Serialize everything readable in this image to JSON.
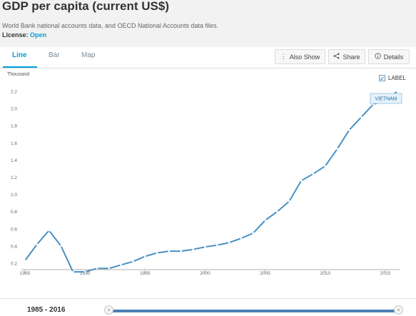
{
  "header": {
    "title": "GDP per capita (current US$)",
    "subtitle": "World Bank national accounts data, and OECD National Accounts data files.",
    "license_label": "License:",
    "license_value": "Open"
  },
  "tabs": [
    {
      "label": "Line",
      "active": true
    },
    {
      "label": "Bar",
      "active": false
    },
    {
      "label": "Map",
      "active": false
    }
  ],
  "toolbar": {
    "also_show": "Also Show",
    "share": "Share",
    "details": "Details"
  },
  "label_toggle": {
    "text": "LABEL",
    "checked": true
  },
  "icons": {
    "also_show": "vertical-dots-icon",
    "share": "share-icon",
    "details": "info-icon",
    "checkbox": "checkmark-icon"
  },
  "colors": {
    "accent": "#009fda",
    "line": "#4a90c2",
    "slider": "#4a7fb5"
  },
  "chart_data": {
    "type": "line",
    "unit_label": "Thousand",
    "x": [
      1985,
      1986,
      1987,
      1988,
      1989,
      1990,
      1991,
      1992,
      1993,
      1994,
      1995,
      1996,
      1997,
      1998,
      1999,
      2000,
      2001,
      2002,
      2003,
      2004,
      2005,
      2006,
      2007,
      2008,
      2009,
      2010,
      2011,
      2012,
      2013,
      2014,
      2015,
      2016
    ],
    "series": [
      {
        "name": "VIETNAM",
        "values": [
          0.23,
          0.42,
          0.58,
          0.4,
          0.1,
          0.1,
          0.14,
          0.14,
          0.18,
          0.22,
          0.28,
          0.32,
          0.34,
          0.34,
          0.36,
          0.39,
          0.41,
          0.44,
          0.49,
          0.55,
          0.7,
          0.8,
          0.92,
          1.16,
          1.24,
          1.33,
          1.53,
          1.75,
          1.9,
          2.05,
          2.09,
          2.2
        ]
      }
    ],
    "ylim": [
      0,
      2.3
    ],
    "yticks": [
      "0.2",
      "0.4",
      "0.6",
      "0.8",
      "1.0",
      "1.2",
      "1.4",
      "1.6",
      "1.8",
      "2.0",
      "2.2"
    ],
    "xticks": [
      "1985",
      "1990",
      "1995",
      "2000",
      "2005",
      "2010",
      "2015"
    ],
    "grid": false
  },
  "footer": {
    "range": "1985 - 2016"
  }
}
